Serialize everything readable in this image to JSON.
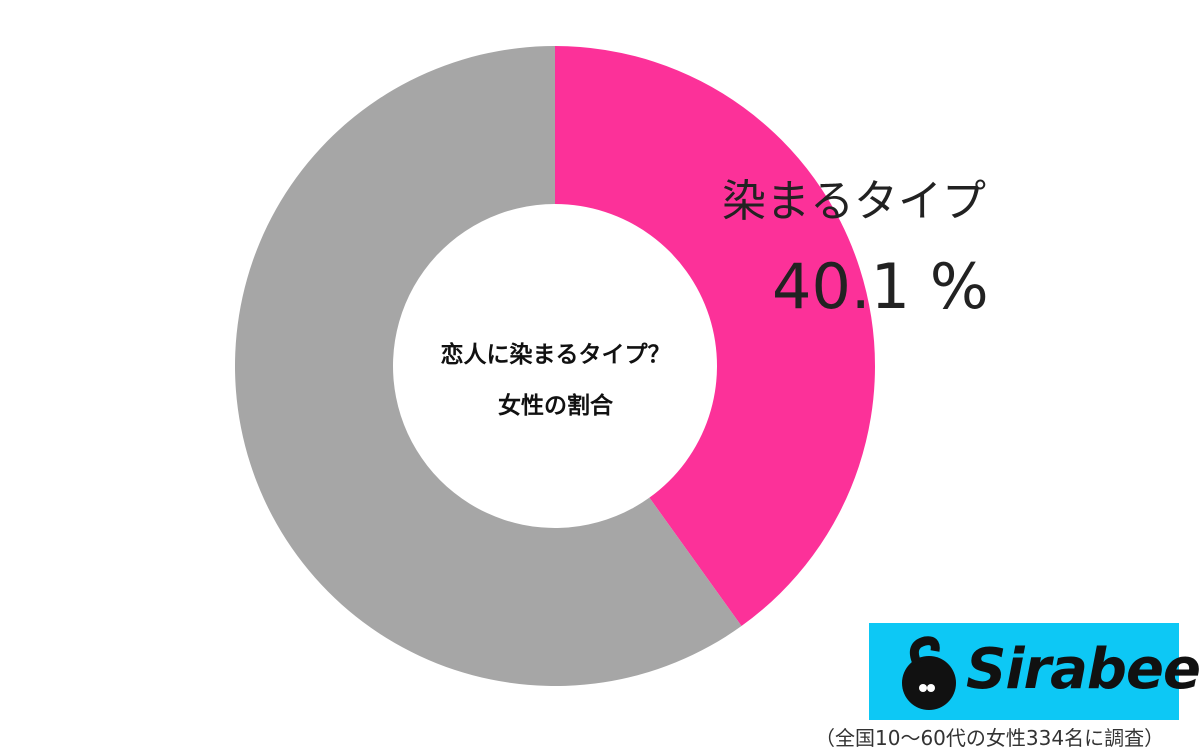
{
  "chart_data": {
    "type": "pie",
    "donut": true,
    "title": "恋人に染まるタイプ？ 女性の割合",
    "title_lines": [
      "恋人に染まるタイプ？",
      "女性の割合"
    ],
    "slices": [
      {
        "name": "染まるタイプ",
        "value": 40.1,
        "label": "40.1 %",
        "color": "#fc3199"
      },
      {
        "value": 59.9,
        "color": "#a6a6a6"
      }
    ],
    "start_angle": "top",
    "direction": "clockwise",
    "legend": "none"
  },
  "branding": {
    "logo_text": "Sirabee",
    "logo_color": "#0dc8f5"
  },
  "footnote": "（全国10～60代の女性334名に調査）"
}
